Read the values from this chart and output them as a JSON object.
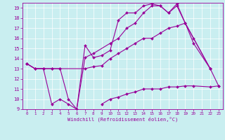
{
  "xlabel": "Windchill (Refroidissement éolien,°C)",
  "xlim": [
    -0.5,
    23.5
  ],
  "ylim": [
    9,
    19.5
  ],
  "yticks": [
    9,
    10,
    11,
    12,
    13,
    14,
    15,
    16,
    17,
    18,
    19
  ],
  "xticks": [
    0,
    1,
    2,
    3,
    4,
    5,
    6,
    7,
    8,
    9,
    10,
    11,
    12,
    13,
    14,
    15,
    16,
    17,
    18,
    19,
    20,
    21,
    22,
    23
  ],
  "background_color": "#c9eef0",
  "grid_color": "#ffffff",
  "line_color": "#990099",
  "line1_x": [
    0,
    1,
    2,
    3,
    4,
    5,
    6,
    7,
    8,
    9,
    10,
    11,
    12,
    13,
    14,
    15,
    16,
    17,
    18,
    19,
    22
  ],
  "line1_y": [
    13.5,
    13.0,
    13.0,
    9.5,
    10.0,
    9.5,
    9.0,
    15.3,
    14.1,
    14.3,
    14.8,
    17.8,
    18.5,
    18.5,
    19.2,
    19.4,
    19.2,
    18.5,
    19.4,
    17.5,
    13.0
  ],
  "line2_x": [
    0,
    1,
    2,
    3,
    4,
    5,
    6,
    7,
    8,
    10,
    11,
    12,
    13,
    14,
    15,
    16,
    17,
    18,
    19,
    20,
    22
  ],
  "line2_y": [
    13.5,
    13.0,
    13.0,
    13.0,
    13.0,
    10.0,
    9.0,
    14.1,
    14.5,
    15.5,
    16.0,
    17.0,
    17.5,
    18.5,
    19.2,
    19.2,
    18.5,
    19.2,
    17.5,
    16.0,
    13.0
  ],
  "line3_x": [
    0,
    1,
    2,
    3,
    4,
    7,
    8,
    9,
    10,
    11,
    12,
    13,
    14,
    15,
    16,
    17,
    18,
    19,
    20,
    22,
    23
  ],
  "line3_y": [
    13.5,
    13.0,
    13.0,
    13.0,
    13.0,
    13.0,
    13.2,
    13.3,
    14.0,
    14.5,
    15.0,
    15.5,
    16.0,
    16.0,
    16.5,
    17.0,
    17.2,
    17.5,
    15.5,
    13.0,
    11.3
  ],
  "line4_x": [
    9,
    10,
    11,
    12,
    13,
    14,
    15,
    16,
    17,
    18,
    19,
    20,
    22,
    23
  ],
  "line4_y": [
    9.5,
    10.0,
    10.2,
    10.5,
    10.7,
    11.0,
    11.0,
    11.0,
    11.2,
    11.2,
    11.3,
    11.3,
    11.2,
    11.3
  ]
}
